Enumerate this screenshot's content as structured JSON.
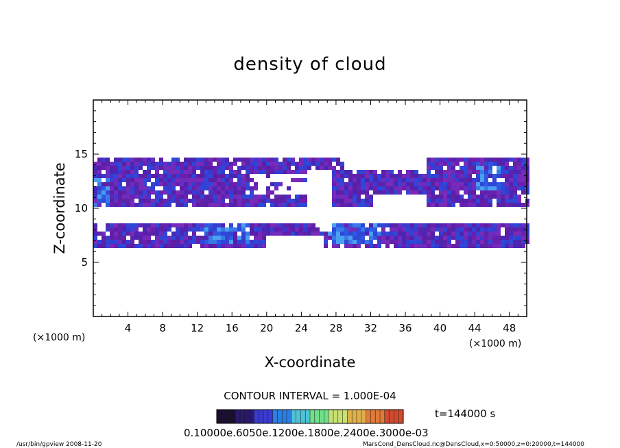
{
  "chart_data": {
    "type": "heatmap",
    "title": "density of cloud",
    "xlabel": "X-coordinate",
    "ylabel": "Z-coordinate",
    "x_unit": "(×1000 m)",
    "y_unit": "(×1000 m)",
    "xlim": [
      0,
      50
    ],
    "ylim": [
      0,
      20
    ],
    "x_ticks": [
      4,
      8,
      12,
      16,
      20,
      24,
      28,
      32,
      36,
      40,
      44,
      48
    ],
    "y_ticks": [
      5,
      10,
      15
    ],
    "contour_interval": "CONTOUR INTERVAL = 1.000E-04",
    "time_label": "t=144000 s",
    "colorbar_labels": [
      "0.1000",
      "0.6000e-03",
      "0.1200e-03",
      "0.1800e-03",
      "0.2400e-03",
      "0.3000e-03"
    ],
    "colorbar_label_text": "0.10000e.6050e.1200e.1800e.2400e.3000e-03",
    "colorbar_colors": [
      "#1a0f2e",
      "#2a1a6b",
      "#3a3ad0",
      "#2c7fe0",
      "#4ec3d6",
      "#6fe08a",
      "#c8e070",
      "#e0b04a",
      "#e07a3a",
      "#d04a2e"
    ],
    "cloud_layers": [
      {
        "x": [
          0,
          50
        ],
        "z": [
          10.3,
          15.0
        ],
        "note": "upper layer, gap 25-27"
      },
      {
        "x": [
          0,
          50
        ],
        "z": [
          6.5,
          9.0
        ],
        "note": "lower layer"
      }
    ]
  },
  "footer": {
    "left": "/usr/bin/gpview  2008-11-20",
    "right": "MarsCond_DensCloud.nc@DensCloud,x=0:50000,z=0:20000,t=144000"
  }
}
